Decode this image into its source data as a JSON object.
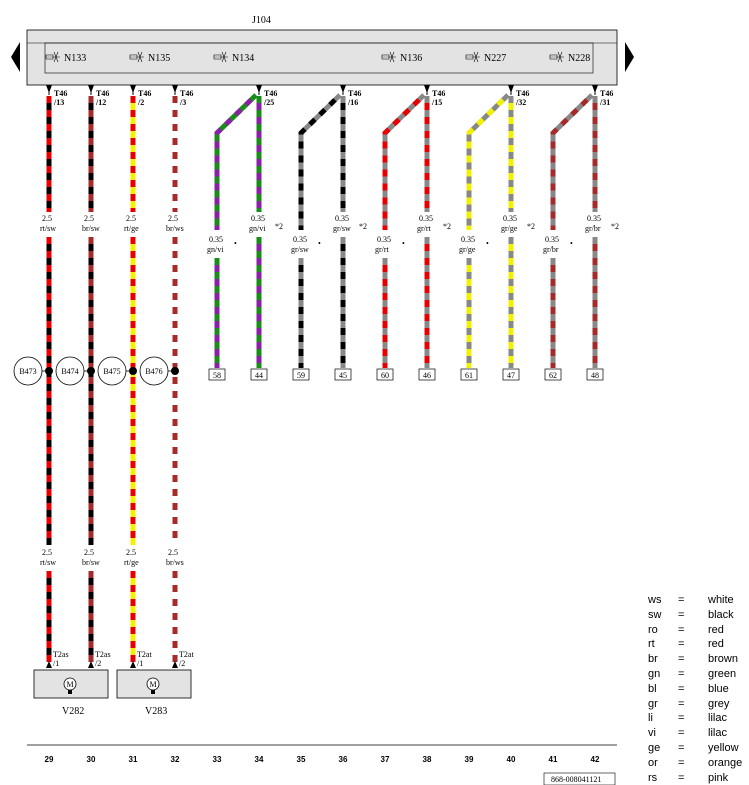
{
  "module": "J104",
  "valves": [
    {
      "label": "N133"
    },
    {
      "label": "N135"
    },
    {
      "label": "N134"
    },
    {
      "label": "N136"
    },
    {
      "label": "N227"
    },
    {
      "label": "N228"
    }
  ],
  "straight_wires": [
    {
      "pin": "T46",
      "sub": "/13",
      "size": "2.5",
      "color_code": "rt/sw",
      "colors": [
        "#e60000",
        "#000000"
      ],
      "joint": "B473",
      "size_low": "2.5",
      "code_low": "rt/sw",
      "term": "T2as",
      "term_sub": "/1",
      "col": "29"
    },
    {
      "pin": "T46",
      "sub": "/12",
      "size": "2.5",
      "color_code": "br/sw",
      "colors": [
        "#a52a2a",
        "#000000"
      ],
      "joint": "B474",
      "size_low": "2.5",
      "code_low": "br/sw",
      "term": "T2as",
      "term_sub": "/2",
      "col": "30"
    },
    {
      "pin": "T46",
      "sub": "/2",
      "size": "2.5",
      "color_code": "rt/ge",
      "colors": [
        "#e60000",
        "#f2f200"
      ],
      "joint": "B475",
      "size_low": "2.5",
      "code_low": "rt/ge",
      "term": "T2at",
      "term_sub": "/1",
      "col": "31"
    },
    {
      "pin": "T46",
      "sub": "/3",
      "size": "2.5",
      "color_code": "br/ws",
      "colors": [
        "#a52a2a",
        "#ffffff"
      ],
      "joint": "B476",
      "size_low": "2.5",
      "code_low": "br/ws",
      "term": "T2at",
      "term_sub": "/2",
      "col": "32"
    }
  ],
  "motors": [
    {
      "label": "V282",
      "symbol": "M"
    },
    {
      "label": "V283",
      "symbol": "M"
    }
  ],
  "wire_pairs": [
    {
      "left": {
        "size": "0.35",
        "code": "gn/vi",
        "box": "58",
        "col": "33",
        "colors": [
          "#1a8c1a",
          "#8b1fa8"
        ]
      },
      "right": {
        "pin": "T46",
        "sub": "/25",
        "size": "0.35",
        "code": "gn/vi",
        "box": "44",
        "col": "34",
        "colors": [
          "#1a8c1a",
          "#8b1fa8"
        ],
        "note": "*2"
      }
    },
    {
      "left": {
        "size": "0.35",
        "code": "gr/sw",
        "box": "59",
        "col": "35",
        "colors": [
          "#888888",
          "#000000"
        ]
      },
      "right": {
        "pin": "T46",
        "sub": "/16",
        "size": "0.35",
        "code": "gr/sw",
        "box": "45",
        "col": "36",
        "colors": [
          "#888888",
          "#000000"
        ],
        "note": "*2"
      }
    },
    {
      "left": {
        "size": "0.35",
        "code": "gr/rt",
        "box": "60",
        "col": "37",
        "colors": [
          "#888888",
          "#e60000"
        ]
      },
      "right": {
        "pin": "T46",
        "sub": "/15",
        "size": "0.35",
        "code": "gr/rt",
        "box": "46",
        "col": "38",
        "colors": [
          "#888888",
          "#e60000"
        ],
        "note": "*2"
      }
    },
    {
      "left": {
        "size": "0.35",
        "code": "gr/ge",
        "box": "61",
        "col": "39",
        "colors": [
          "#888888",
          "#f2f200"
        ]
      },
      "right": {
        "pin": "T46",
        "sub": "/32",
        "size": "0.35",
        "code": "gr/ge",
        "box": "47",
        "col": "40",
        "colors": [
          "#888888",
          "#f2f200"
        ],
        "note": "*2"
      }
    },
    {
      "left": {
        "size": "0.35",
        "code": "gr/br",
        "box": "62",
        "col": "41",
        "colors": [
          "#888888",
          "#a52a2a"
        ]
      },
      "right": {
        "pin": "T46",
        "sub": "/31",
        "size": "0.35",
        "code": "gr/br",
        "box": "48",
        "col": "42",
        "colors": [
          "#888888",
          "#a52a2a"
        ],
        "note": "*2"
      }
    }
  ],
  "dot_marker": "•",
  "doc_ref": "868-008041121",
  "legend": [
    {
      "abbr": "ws",
      "eq": "=",
      "name": "white"
    },
    {
      "abbr": "sw",
      "eq": "=",
      "name": "black"
    },
    {
      "abbr": "ro",
      "eq": "=",
      "name": "red"
    },
    {
      "abbr": "rt",
      "eq": "=",
      "name": "red"
    },
    {
      "abbr": "br",
      "eq": "=",
      "name": "brown"
    },
    {
      "abbr": "gn",
      "eq": "=",
      "name": "green"
    },
    {
      "abbr": "bl",
      "eq": "=",
      "name": "blue"
    },
    {
      "abbr": "gr",
      "eq": "=",
      "name": "grey"
    },
    {
      "abbr": "li",
      "eq": "=",
      "name": "lilac"
    },
    {
      "abbr": "vi",
      "eq": "=",
      "name": "lilac"
    },
    {
      "abbr": "ge",
      "eq": "=",
      "name": "yellow"
    },
    {
      "abbr": "or",
      "eq": "=",
      "name": "orange"
    },
    {
      "abbr": "rs",
      "eq": "=",
      "name": "pink"
    }
  ]
}
